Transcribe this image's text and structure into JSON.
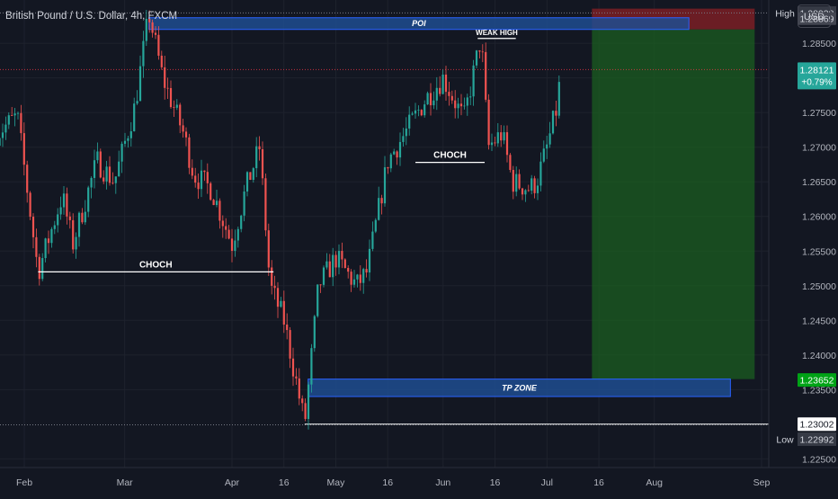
{
  "header": {
    "symbol": "British Pound / U.S. Dollar, 4h, FXCM",
    "currency_button": "USD"
  },
  "colors": {
    "background": "#131722",
    "up_candle": "#26a69a",
    "down_candle": "#ef5350",
    "zone_fill": "#1e4c8f",
    "zone_border": "#2962ff",
    "profit_fill": "#1b5e20",
    "loss_fill": "#7b1f24",
    "price_tag": "#26a69a",
    "tp_tag": "#00a316"
  },
  "chart_data": {
    "type": "candlestick",
    "x_axis": {
      "ticks": [
        {
          "label": "Feb",
          "date": "2024-02-01"
        },
        {
          "label": "Mar",
          "date": "2024-03-01"
        },
        {
          "label": "Apr",
          "date": "2024-04-01"
        },
        {
          "label": "16",
          "date": "2024-04-16"
        },
        {
          "label": "May",
          "date": "2024-05-01"
        },
        {
          "label": "16",
          "date": "2024-05-16"
        },
        {
          "label": "Jun",
          "date": "2024-06-01"
        },
        {
          "label": "16",
          "date": "2024-06-16"
        },
        {
          "label": "Jul",
          "date": "2024-07-01"
        },
        {
          "label": "16",
          "date": "2024-07-16"
        },
        {
          "label": "Aug",
          "date": "2024-08-01"
        },
        {
          "label": "Sep",
          "date": "2024-09-01"
        }
      ]
    },
    "y_axis": {
      "range": [
        1.22375,
        1.29125
      ],
      "ticks": [
        1.285,
        1.28,
        1.275,
        1.27,
        1.265,
        1.26,
        1.255,
        1.25,
        1.245,
        1.24,
        1.235,
        1.225
      ]
    },
    "price_path": [
      {
        "date": "2024-01-24",
        "close": 1.272
      },
      {
        "date": "2024-01-30",
        "close": 1.2745
      },
      {
        "date": "2024-02-05",
        "close": 1.252
      },
      {
        "date": "2024-02-12",
        "close": 1.263
      },
      {
        "date": "2024-02-15",
        "close": 1.256
      },
      {
        "date": "2024-02-22",
        "close": 1.268
      },
      {
        "date": "2024-02-27",
        "close": 1.265
      },
      {
        "date": "2024-03-04",
        "close": 1.276
      },
      {
        "date": "2024-03-08",
        "close": 1.2893
      },
      {
        "date": "2024-03-12",
        "close": 1.28
      },
      {
        "date": "2024-03-18",
        "close": 1.272
      },
      {
        "date": "2024-03-21",
        "close": 1.266
      },
      {
        "date": "2024-03-26",
        "close": 1.264
      },
      {
        "date": "2024-04-01",
        "close": 1.256
      },
      {
        "date": "2024-04-05",
        "close": 1.264
      },
      {
        "date": "2024-04-09",
        "close": 1.27
      },
      {
        "date": "2024-04-12",
        "close": 1.25
      },
      {
        "date": "2024-04-16",
        "close": 1.245
      },
      {
        "date": "2024-04-22",
        "close": 1.23
      },
      {
        "date": "2024-04-26",
        "close": 1.25
      },
      {
        "date": "2024-05-01",
        "close": 1.254
      },
      {
        "date": "2024-05-07",
        "close": 1.25
      },
      {
        "date": "2024-05-10",
        "close": 1.252
      },
      {
        "date": "2024-05-16",
        "close": 1.268
      },
      {
        "date": "2024-05-21",
        "close": 1.272
      },
      {
        "date": "2024-05-27",
        "close": 1.277
      },
      {
        "date": "2024-06-01",
        "close": 1.28
      },
      {
        "date": "2024-06-07",
        "close": 1.274
      },
      {
        "date": "2024-06-12",
        "close": 1.286
      },
      {
        "date": "2024-06-14",
        "close": 1.27
      },
      {
        "date": "2024-06-18",
        "close": 1.272
      },
      {
        "date": "2024-06-21",
        "close": 1.265
      },
      {
        "date": "2024-06-26",
        "close": 1.264
      },
      {
        "date": "2024-06-28",
        "close": 1.265
      },
      {
        "date": "2024-07-01",
        "close": 1.27
      },
      {
        "date": "2024-07-04",
        "close": 1.276
      },
      {
        "date": "2024-07-05",
        "close": 1.2812
      }
    ],
    "current_price": {
      "value": "1.28121",
      "change": "+0.79%"
    },
    "high": {
      "label": "High",
      "value": "1.28938"
    },
    "low": {
      "label": "Low",
      "value": "1.22992"
    },
    "annotations": {
      "poi": {
        "label": "POI",
        "price_low": 1.287,
        "price_high": 1.28869,
        "price_tag": "1.28869",
        "date_start": "2024-03-08",
        "date_end": "2024-08-11"
      },
      "tp_zone": {
        "label": "TP ZONE",
        "price_low": 1.234,
        "price_high": 1.23652,
        "date_start": "2024-04-23",
        "date_end": "2024-08-23"
      },
      "weak_high": {
        "label": "WEAK HIGH",
        "price": 1.2857,
        "date_start": "2024-06-11",
        "date_end": "2024-06-22"
      },
      "choch": [
        {
          "label": "CHOCH",
          "price": 1.252,
          "date_start": "2024-02-05",
          "date_end": "2024-04-13"
        },
        {
          "label": "CHOCH",
          "price": 1.2678,
          "date_start": "2024-05-24",
          "date_end": "2024-06-13"
        }
      ],
      "low_line": {
        "price": 1.23002,
        "price_tag": "1.23002",
        "date_start": "2024-04-22"
      },
      "position": {
        "entry": 1.287,
        "stop": 1.29,
        "target": 1.23652,
        "target_tag": "1.23652",
        "date_start": "2024-07-14",
        "date_end": "2024-08-30"
      }
    }
  }
}
